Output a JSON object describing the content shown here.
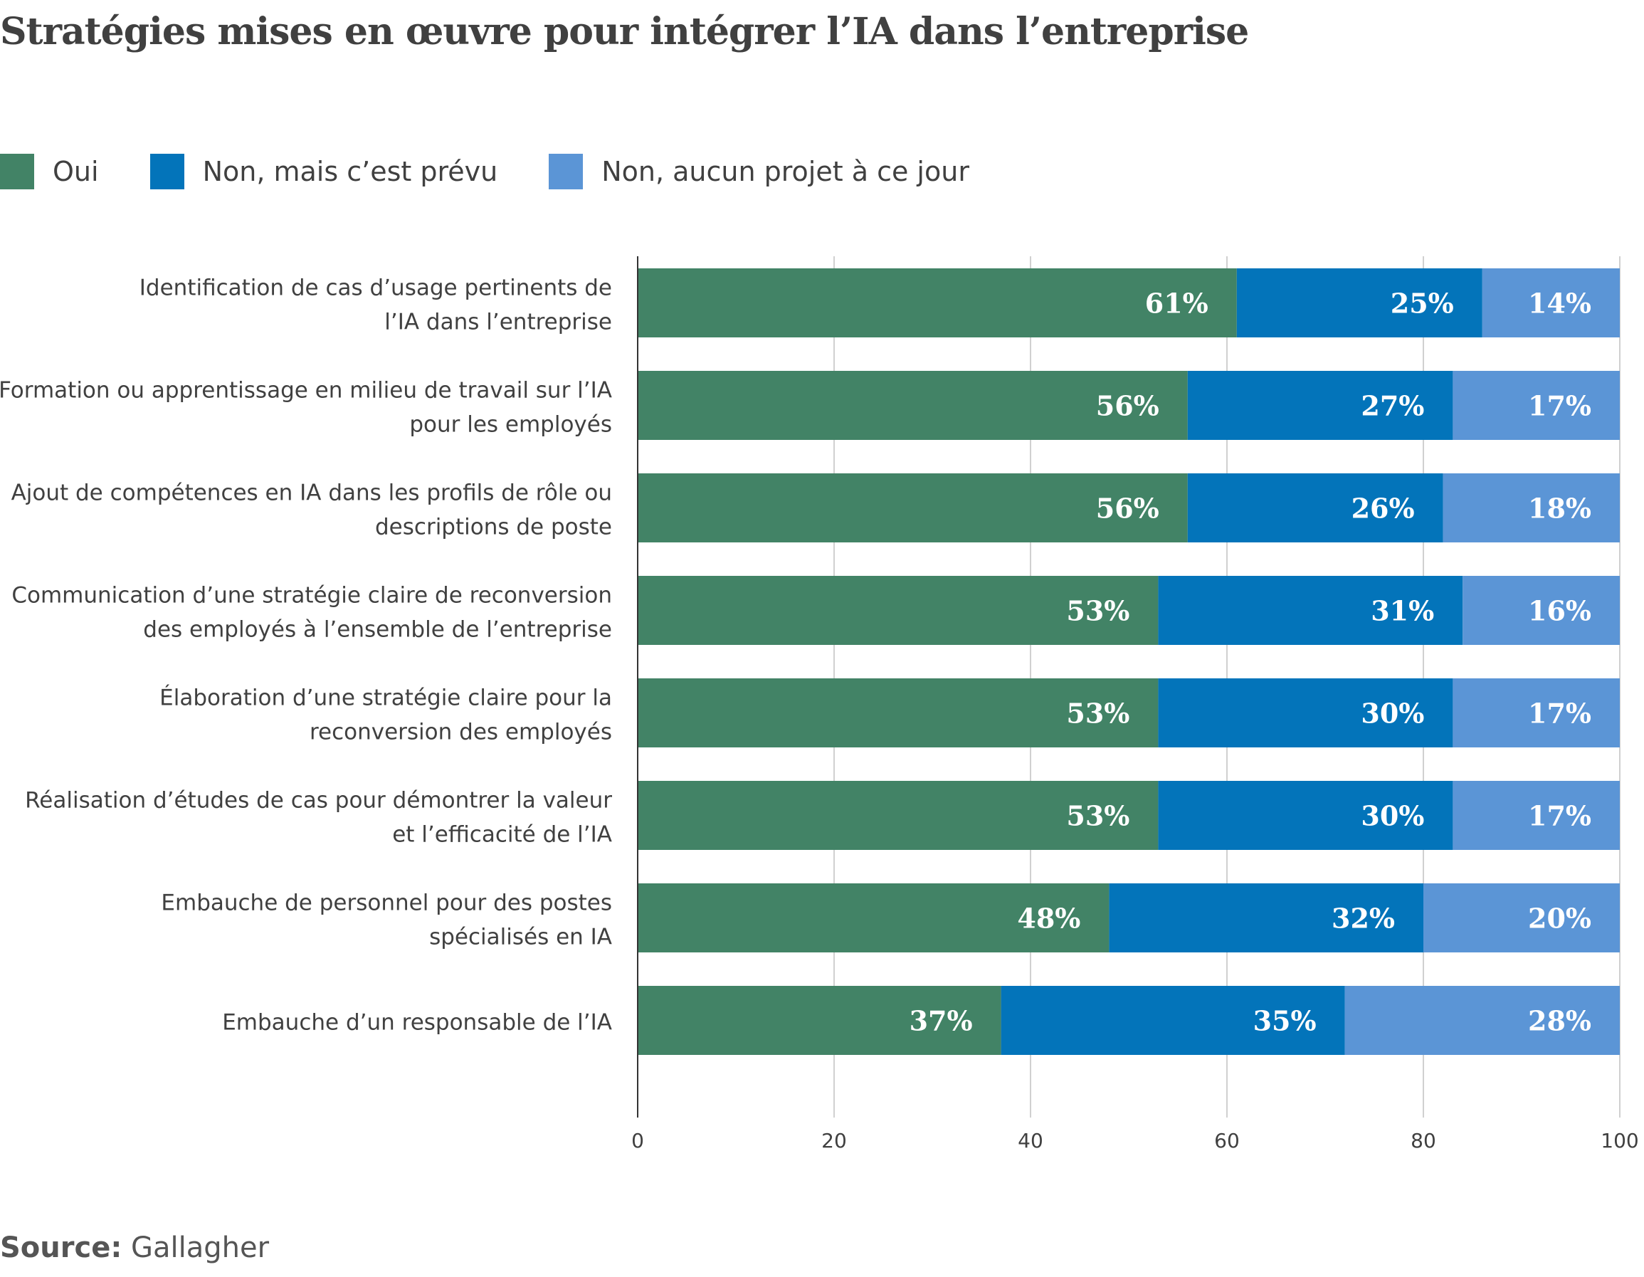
{
  "title": "Stratégies mises en œuvre pour intégrer l’IA dans l’entreprise",
  "legend": [
    {
      "label": "Oui",
      "color": "#428366"
    },
    {
      "label": "Non, mais c’est prévu",
      "color": "#0374BA"
    },
    {
      "label": "Non, aucun projet à ce jour",
      "color": "#5B95D6"
    }
  ],
  "source": {
    "label": "Source:",
    "value": "Gallagher"
  },
  "chart_data": {
    "type": "bar",
    "orientation": "horizontal",
    "stacked": true,
    "title": "Stratégies mises en œuvre pour intégrer l’IA dans l’entreprise",
    "xlabel": "",
    "ylabel": "",
    "xlim": [
      0,
      100
    ],
    "xticks": [
      0,
      20,
      40,
      60,
      80,
      100
    ],
    "grid": true,
    "legend_position": "top-left",
    "categories": [
      [
        "Identification de cas d’usage pertinents de",
        "l’IA dans l’entreprise"
      ],
      [
        "Formation ou apprentissage en milieu de travail sur l’IA",
        "pour les employés"
      ],
      [
        "Ajout de compétences en IA dans les profils de rôle ou",
        "descriptions de poste"
      ],
      [
        "Communication d’une stratégie claire de reconversion",
        "des employés à l’ensemble de l’entreprise"
      ],
      [
        "Élaboration d’une stratégie claire pour la",
        "reconversion des employés"
      ],
      [
        "Réalisation d’études de cas pour démontrer la valeur",
        "et l’efficacité de l’IA"
      ],
      [
        "Embauche de personnel pour des postes",
        "spécialisés en IA"
      ],
      [
        "Embauche d’un responsable de l’IA"
      ]
    ],
    "series": [
      {
        "name": "Oui",
        "color": "#428366",
        "values": [
          61,
          56,
          56,
          53,
          53,
          53,
          48,
          37
        ]
      },
      {
        "name": "Non, mais c’est prévu",
        "color": "#0374BA",
        "values": [
          25,
          27,
          26,
          31,
          30,
          30,
          32,
          35
        ]
      },
      {
        "name": "Non, aucun projet à ce jour",
        "color": "#5B95D6",
        "values": [
          14,
          17,
          18,
          16,
          17,
          17,
          20,
          28
        ]
      }
    ],
    "value_suffix": "%"
  }
}
